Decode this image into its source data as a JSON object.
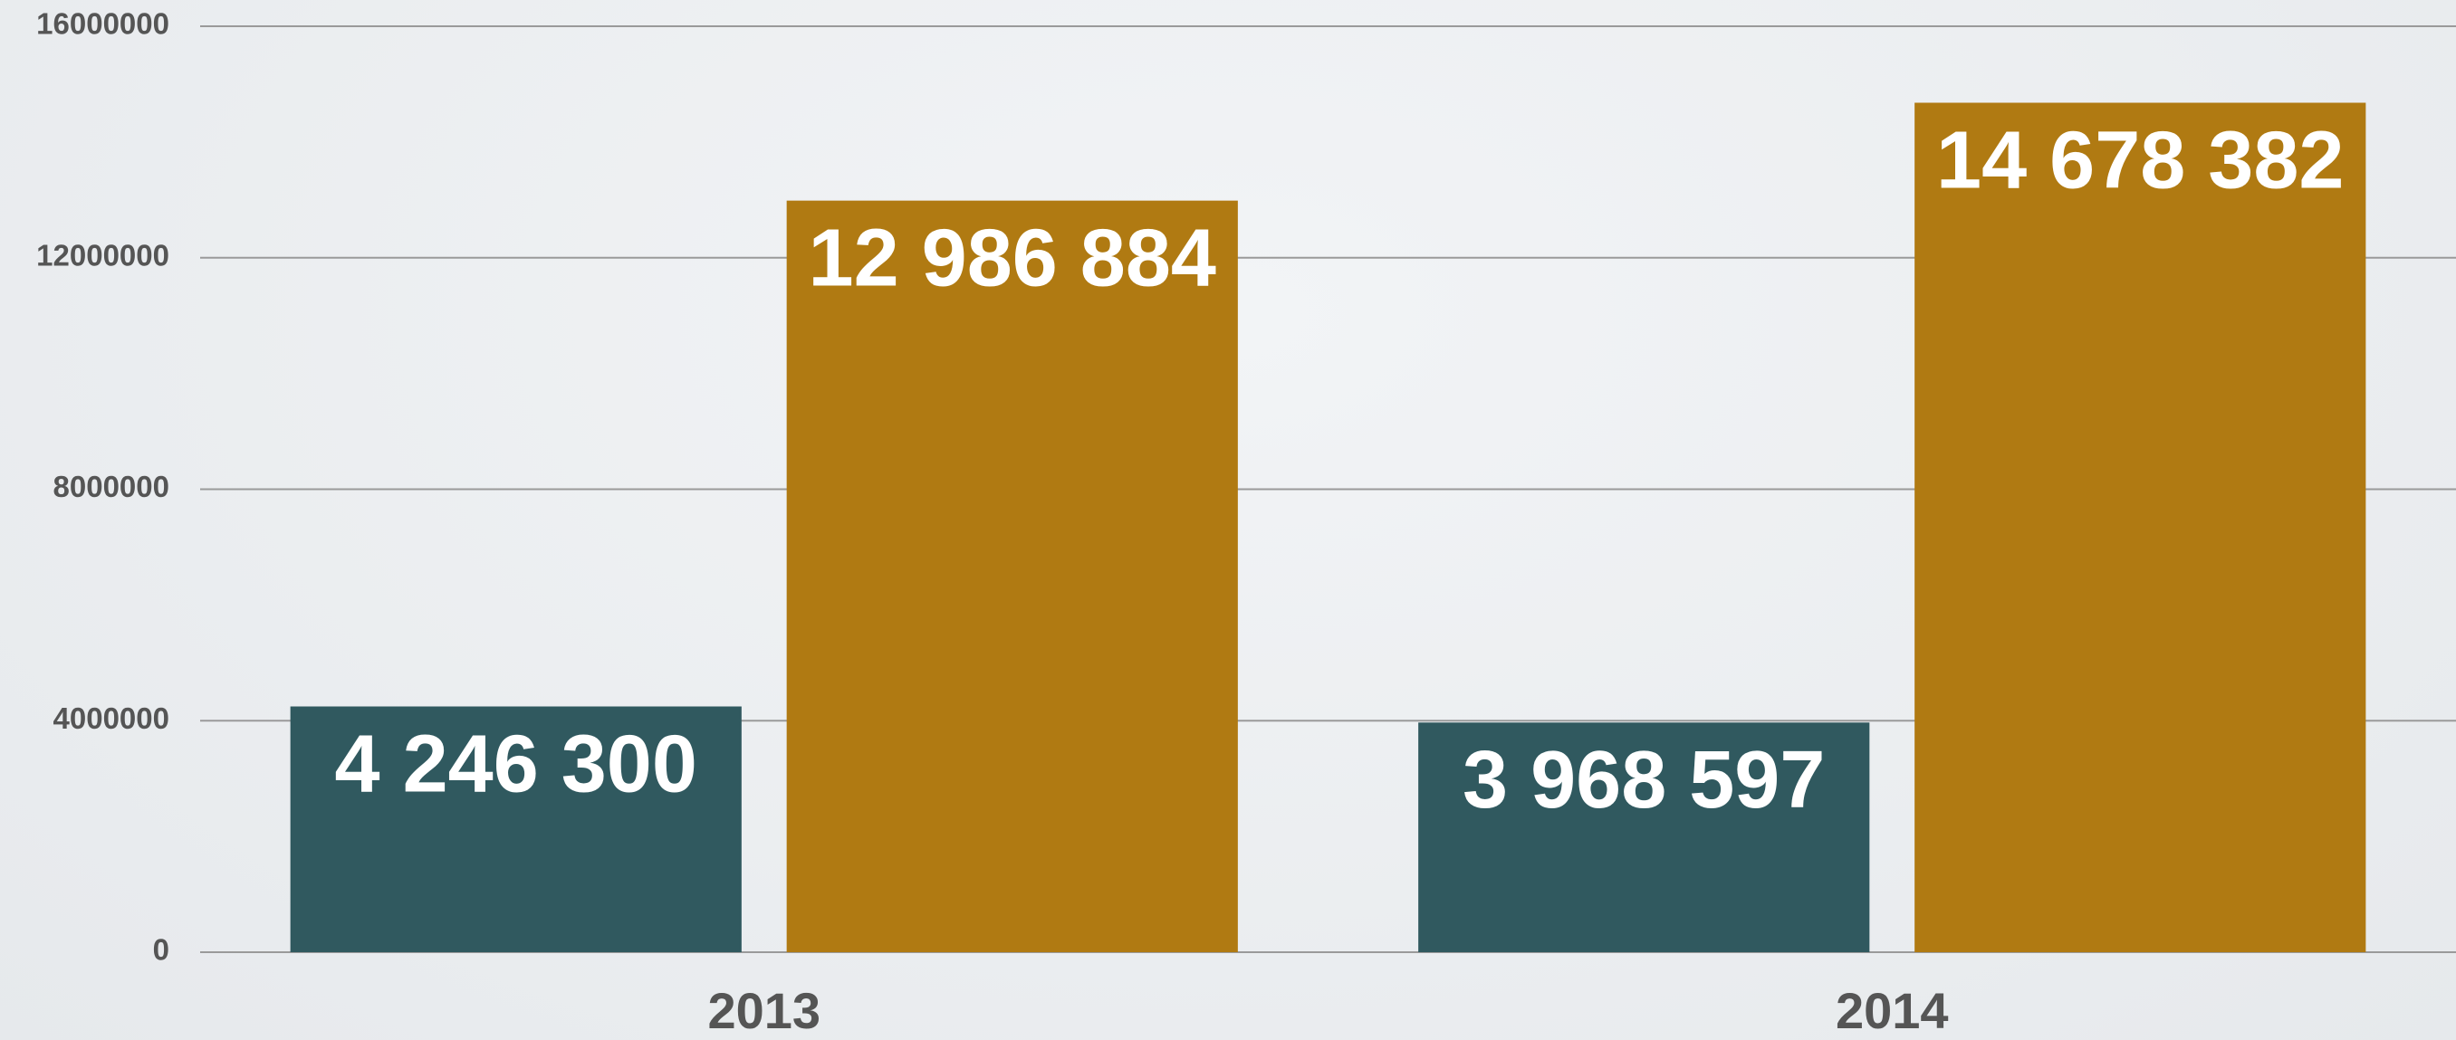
{
  "chart_data": {
    "type": "bar",
    "categories": [
      "2013",
      "2014"
    ],
    "series": [
      {
        "color": "#30595f",
        "values": [
          4246300,
          3968597
        ],
        "value_labels": [
          "4 246 300",
          "3 968 597"
        ]
      },
      {
        "color": "#b07a12",
        "values": [
          12986884,
          14678382
        ],
        "value_labels": [
          "12 986 884",
          "14 678 382"
        ]
      }
    ],
    "ylim": [
      0,
      16000000
    ],
    "yticks": [
      0,
      4000000,
      8000000,
      12000000,
      16000000
    ],
    "grid": true
  }
}
